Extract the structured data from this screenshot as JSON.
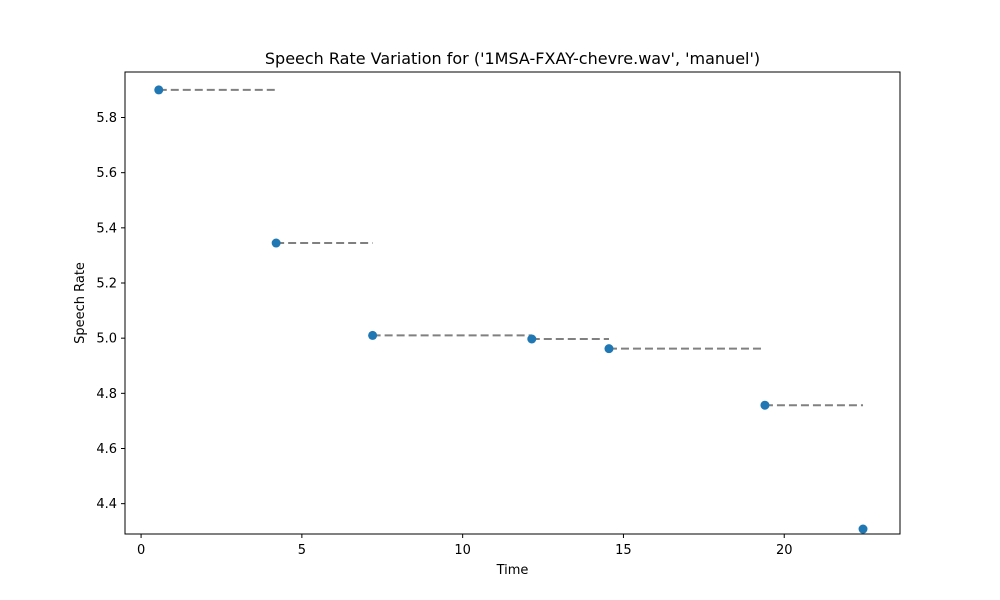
{
  "chart_data": {
    "type": "scatter",
    "title": "Speech Rate Variation for ('1MSA-FXAY-chevre.wav', 'manuel')",
    "xlabel": "Time",
    "ylabel": "Speech Rate",
    "xlim": [
      -0.5,
      23.6
    ],
    "ylim": [
      4.29,
      5.965
    ],
    "xticks": [
      0,
      5,
      10,
      15,
      20
    ],
    "yticks": [
      4.4,
      4.6,
      4.8,
      5.0,
      5.2,
      5.4,
      5.6,
      5.8
    ],
    "yticks_fmt": 1,
    "grid": false,
    "colors": {
      "points": "#1f77b4",
      "segments": "#808080"
    },
    "points": [
      {
        "x": 0.55,
        "y": 5.9
      },
      {
        "x": 4.2,
        "y": 5.345
      },
      {
        "x": 7.2,
        "y": 5.01
      },
      {
        "x": 12.15,
        "y": 4.997
      },
      {
        "x": 14.55,
        "y": 4.962
      },
      {
        "x": 19.4,
        "y": 4.757
      },
      {
        "x": 22.45,
        "y": 4.308
      }
    ],
    "segments": [
      {
        "x_start": 0.55,
        "x_end": 4.2,
        "y": 5.9
      },
      {
        "x_start": 4.2,
        "x_end": 7.2,
        "y": 5.345
      },
      {
        "x_start": 7.2,
        "x_end": 12.15,
        "y": 5.01
      },
      {
        "x_start": 12.15,
        "x_end": 14.55,
        "y": 4.997
      },
      {
        "x_start": 14.55,
        "x_end": 19.4,
        "y": 4.962
      },
      {
        "x_start": 19.4,
        "x_end": 22.45,
        "y": 4.757
      }
    ]
  }
}
